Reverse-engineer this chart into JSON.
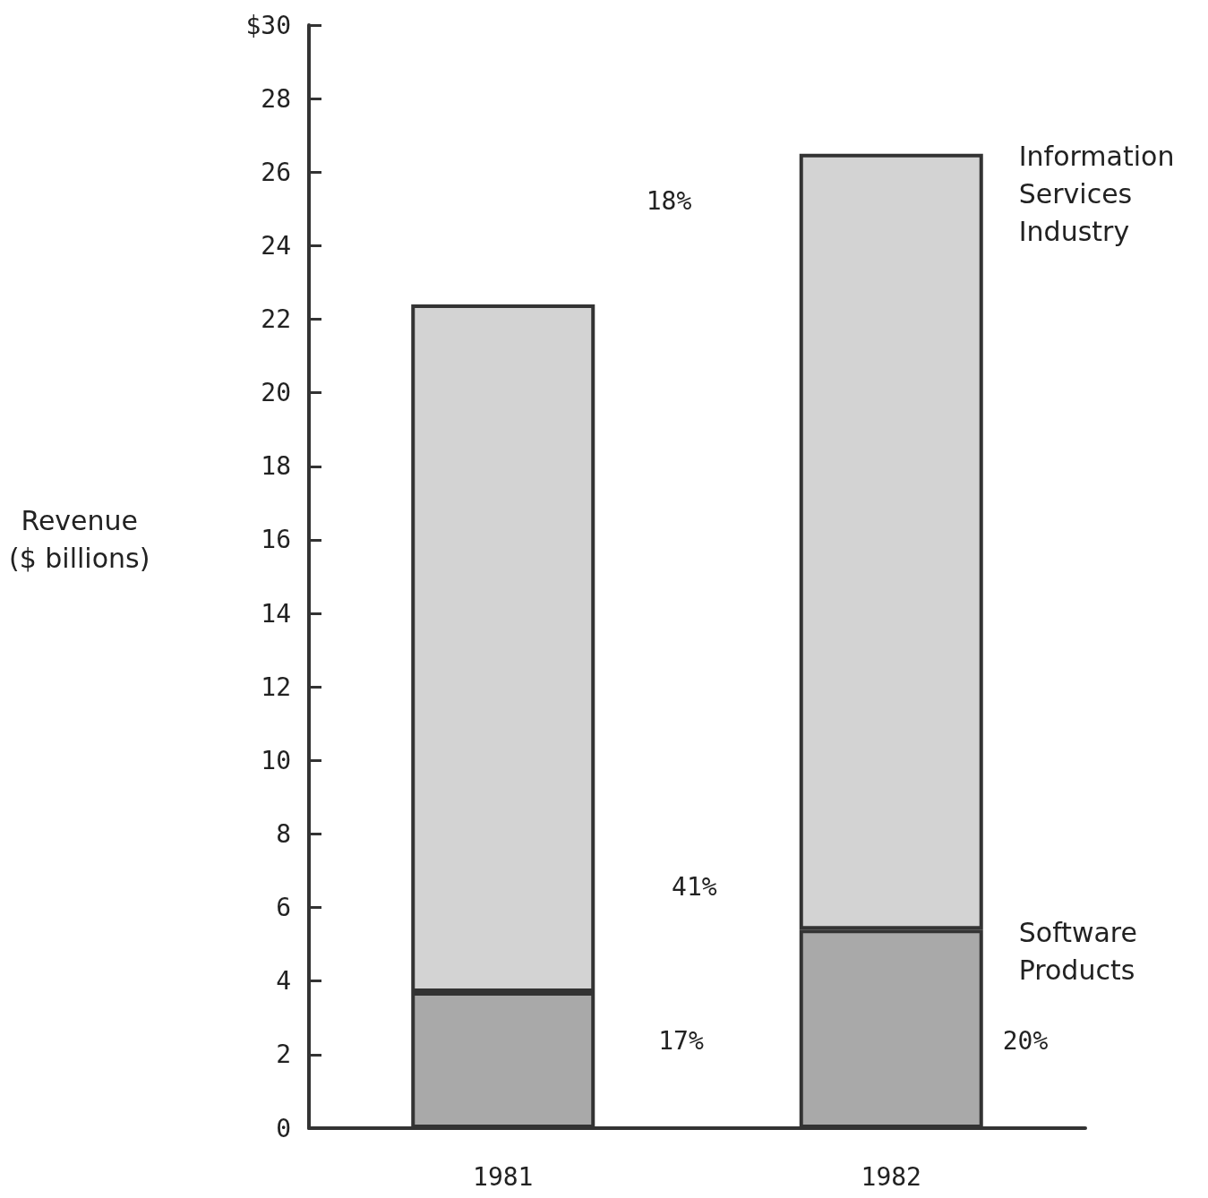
{
  "chart_data": {
    "type": "bar",
    "stacked": true,
    "ylabel": "Revenue\n($ billions)",
    "categories": [
      "1981",
      "1982"
    ],
    "series": [
      {
        "name": "Software Products",
        "color": "#a9a9a9",
        "values": [
          3.7,
          5.4
        ]
      },
      {
        "name": "Information Services Industry",
        "color": "#d3d3d3",
        "values": [
          18.7,
          21.1
        ]
      }
    ],
    "ylim": [
      0,
      30
    ],
    "yticks": [
      0,
      2,
      4,
      6,
      8,
      10,
      12,
      14,
      16,
      18,
      20,
      22,
      24,
      26,
      28,
      {
        "value": 30,
        "label": "$30"
      }
    ],
    "grid": false,
    "legend": false,
    "annotations": [
      "18%",
      "41%",
      "17%",
      "20%"
    ]
  }
}
